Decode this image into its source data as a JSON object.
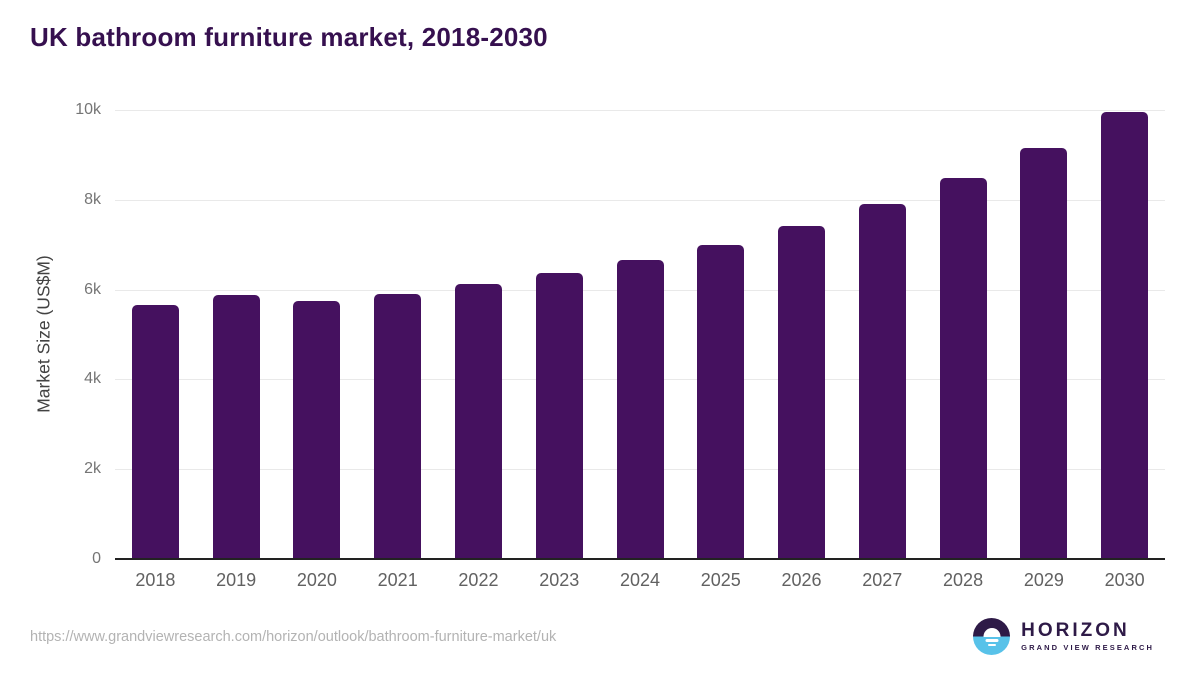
{
  "title": "UK bathroom furniture market, 2018-2030",
  "chart_data": {
    "type": "bar",
    "title": "UK bathroom furniture market, 2018-2030",
    "categories": [
      "2018",
      "2019",
      "2020",
      "2021",
      "2022",
      "2023",
      "2024",
      "2025",
      "2026",
      "2027",
      "2028",
      "2029",
      "2030"
    ],
    "values": [
      5650,
      5890,
      5740,
      5910,
      6120,
      6380,
      6660,
      7000,
      7410,
      7900,
      8480,
      9160,
      9950
    ],
    "xlabel": "",
    "ylabel": "Market Size (US$M)",
    "ylim": [
      0,
      10000
    ],
    "yticks": [
      {
        "value": 0,
        "label": "0"
      },
      {
        "value": 2000,
        "label": "2k"
      },
      {
        "value": 4000,
        "label": "4k"
      },
      {
        "value": 6000,
        "label": "6k"
      },
      {
        "value": 8000,
        "label": "8k"
      },
      {
        "value": 10000,
        "label": "10k"
      }
    ],
    "grid": true,
    "legend_position": "none",
    "bar_color": "#45115f"
  },
  "colors": {
    "title_text": "#36104f",
    "bar": "#45115f",
    "axis_title": "#424242",
    "tick_label": "#757575",
    "gridline": "#e9e9e9",
    "baseline": "#222222",
    "url_text": "#b3b3b3",
    "logo_purple": "#2e1a47",
    "logo_blue": "#58c2e9"
  },
  "footer": {
    "source_url": "https://www.grandviewresearch.com/horizon/outlook/bathroom-furniture-market/uk",
    "logo": {
      "brand": "HORIZON",
      "sub_brand": "GRAND VIEW RESEARCH",
      "icon": "horizon-sunset-icon"
    }
  }
}
